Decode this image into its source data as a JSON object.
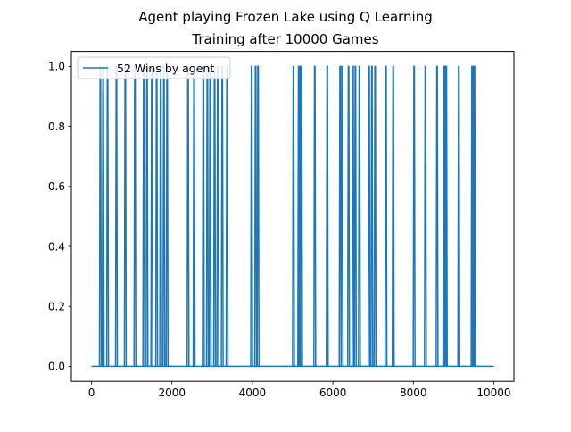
{
  "chart_data": {
    "type": "line",
    "title": "Agent playing Frozen Lake using Q Learning",
    "subtitle": "Training after 10000 Games",
    "xlabel": "",
    "ylabel": "",
    "xlim": [
      -500,
      10500
    ],
    "ylim": [
      -0.05,
      1.05
    ],
    "x_ticks": [
      0,
      2000,
      4000,
      6000,
      8000,
      10000
    ],
    "x_tick_labels": [
      "0",
      "2000",
      "4000",
      "6000",
      "8000",
      "10000"
    ],
    "y_ticks": [
      0.0,
      0.2,
      0.4,
      0.6,
      0.8,
      1.0
    ],
    "y_tick_labels": [
      "0.0",
      "0.2",
      "0.4",
      "0.6",
      "0.8",
      "1.0"
    ],
    "grid": false,
    "legend_placement": "top-left",
    "series": [
      {
        "name": "52 Wins by agent",
        "color": "#1f77b4",
        "x_range": [
          0,
          10000
        ],
        "baseline": 0,
        "spike_value": 1,
        "win_games": [
          220,
          290,
          400,
          620,
          840,
          1080,
          1300,
          1380,
          1500,
          1620,
          1720,
          1800,
          1880,
          2400,
          2550,
          2780,
          2880,
          2950,
          3060,
          3140,
          3250,
          3370,
          3980,
          4080,
          4140,
          5020,
          5150,
          5180,
          5220,
          5550,
          5860,
          6180,
          6230,
          6390,
          6500,
          6560,
          6660,
          6900,
          6970,
          7050,
          7320,
          7500,
          8020,
          8300,
          8590,
          8760,
          8790,
          8820,
          9130,
          9460,
          9490,
          9520
        ]
      }
    ]
  }
}
